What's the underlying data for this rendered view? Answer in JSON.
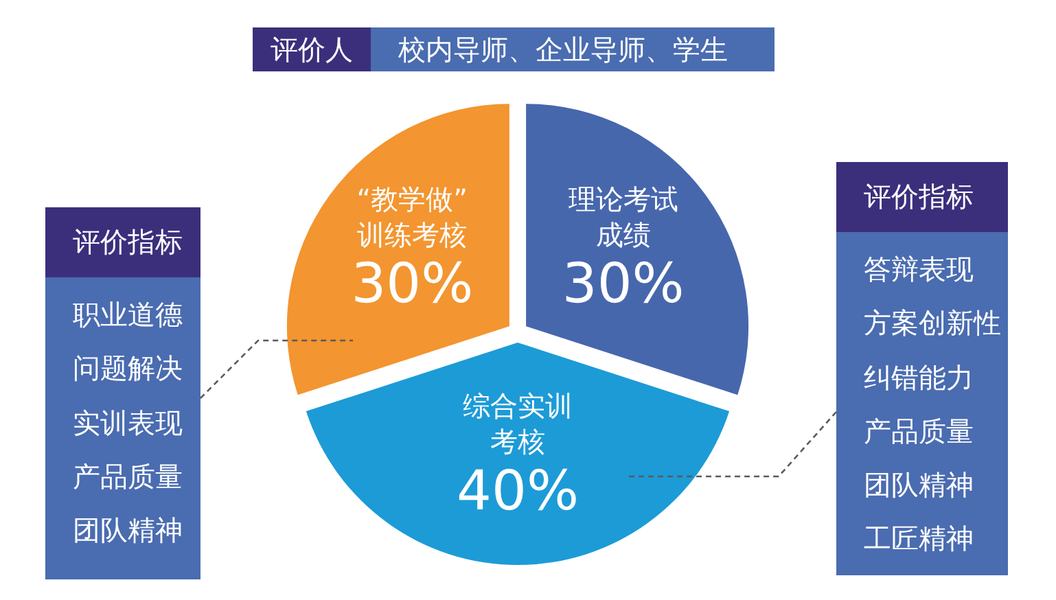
{
  "chart_data": [
    {
      "type": "pie",
      "title": "评价人",
      "subtitle": "校内导师、企业导师、学生",
      "categories": [
        "理论考试成绩",
        "综合实训考核",
        "“教学做”训练考核"
      ],
      "values": [
        30,
        40,
        30
      ],
      "colors": [
        "#4767ad",
        "#1d9bd7",
        "#f39530"
      ],
      "value_labels": [
        "30%",
        "40%",
        "30%"
      ],
      "legend": false
    },
    {
      "type": "other",
      "title": "评价指标",
      "annotations": [
        "职业道德",
        "问题解决",
        "实训表现",
        "产品质量",
        "团队精神"
      ]
    },
    {
      "type": "other",
      "title": "评价指标",
      "annotations": [
        "答辩表现",
        "方案创新性",
        "纠错能力",
        "产品质量",
        "团队精神",
        "工匠精神"
      ]
    }
  ]
}
